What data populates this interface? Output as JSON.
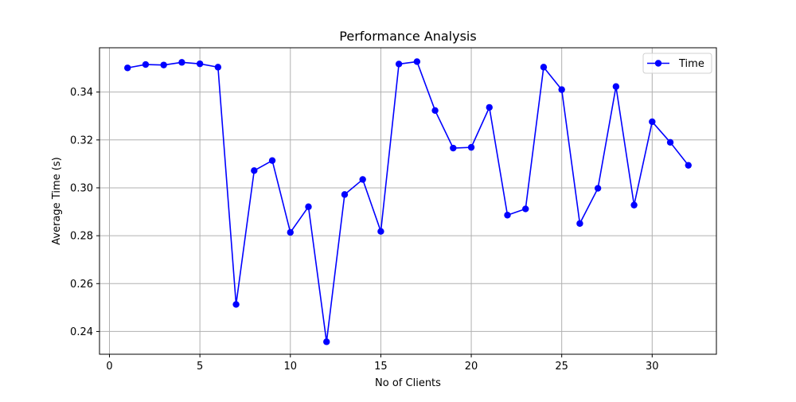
{
  "chart_data": {
    "type": "line",
    "title": "Performance Analysis",
    "xlabel": "No of Clients",
    "ylabel": "Average Time (s)",
    "xlim": [
      -0.55,
      33.55
    ],
    "ylim": [
      0.2305,
      0.3585
    ],
    "xticks": [
      0,
      5,
      10,
      15,
      20,
      25,
      30
    ],
    "yticks": [
      0.24,
      0.26,
      0.28,
      0.3,
      0.32,
      0.34
    ],
    "xtick_labels": [
      "0",
      "5",
      "10",
      "15",
      "20",
      "25",
      "30"
    ],
    "ytick_labels": [
      "0.24",
      "0.26",
      "0.28",
      "0.30",
      "0.32",
      "0.34"
    ],
    "grid": true,
    "legend_position": "top-right",
    "series": [
      {
        "name": "Time",
        "color": "#0000ff",
        "marker": "circle",
        "x": [
          1,
          2,
          3,
          4,
          5,
          6,
          7,
          8,
          9,
          10,
          11,
          12,
          13,
          14,
          15,
          16,
          17,
          18,
          19,
          20,
          21,
          22,
          23,
          24,
          25,
          26,
          27,
          28,
          29,
          30,
          31,
          32
        ],
        "y": [
          0.3501,
          0.3515,
          0.3513,
          0.3524,
          0.3518,
          0.3504,
          0.2513,
          0.3072,
          0.3114,
          0.2814,
          0.2921,
          0.2357,
          0.2972,
          0.3035,
          0.2818,
          0.3517,
          0.3527,
          0.3323,
          0.3166,
          0.3169,
          0.3336,
          0.2886,
          0.2912,
          0.3504,
          0.341,
          0.2851,
          0.2998,
          0.3423,
          0.2928,
          0.3276,
          0.319,
          0.3094
        ]
      }
    ]
  }
}
